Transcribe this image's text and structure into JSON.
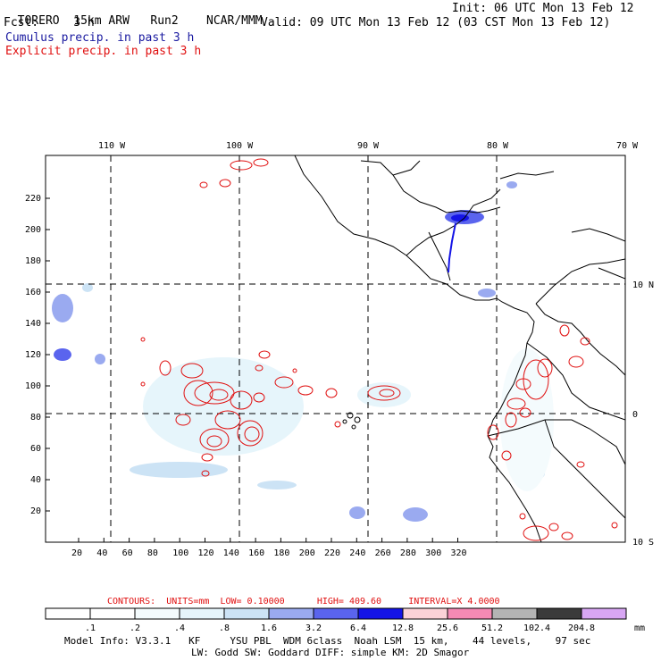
{
  "header": {
    "model": "TORERO",
    "resolution": "15km ARW",
    "run": "Run2",
    "org": "NCAR/MMM",
    "init": "Init: 06 UTC Mon 13 Feb 12",
    "fcst_label": "Fcst:",
    "fcst_value": "3 h",
    "valid": "Valid: 09 UTC Mon 13 Feb 12 (03 CST Mon 13 Feb 12)",
    "cumulus_title": "Cumulus precip. in past 3 h",
    "explicit_title": "Explicit precip. in past 3 h"
  },
  "colors": {
    "cumulus": "#1a1aa0",
    "explicit": "#e01010",
    "coast": "#000000"
  },
  "map": {
    "lon_labels": [
      "110 W",
      "100 W",
      "90 W",
      "80 W",
      "70 W"
    ],
    "lat_labels": [
      "10 N",
      "0",
      "10 S"
    ],
    "x_ticks": [
      "20",
      "40",
      "60",
      "80",
      "100",
      "120",
      "140",
      "160",
      "180",
      "200",
      "220",
      "240",
      "260",
      "280",
      "300",
      "320"
    ],
    "y_ticks": [
      "20",
      "40",
      "60",
      "80",
      "100",
      "120",
      "140",
      "160",
      "180",
      "200",
      "220"
    ]
  },
  "contour_info": {
    "label": "CONTOURS:",
    "units": "UNITS=mm",
    "low": "LOW= 0.10000",
    "high": "HIGH= 409.60",
    "interval": "INTERVAL=X 4.0000"
  },
  "colorbar": {
    "unit": "mm",
    "levels": [
      ".1",
      ".2",
      ".4",
      ".8",
      "1.6",
      "3.2",
      "6.4",
      "12.8",
      "25.6",
      "51.2",
      "102.4",
      "204.8"
    ],
    "colors": [
      "#ffffff",
      "#ffffff",
      "#f4fbfd",
      "#e6f5fb",
      "#cce3f5",
      "#9aaaf0",
      "#5a64ee",
      "#1414e6",
      "#fbd2d7",
      "#f58ab4",
      "#b4b4b4",
      "#3a3a3a",
      "#d8a6f4"
    ]
  },
  "footer": {
    "line1": "Model Info: V3.3.1   KF     YSU PBL  WDM 6class  Noah LSM  15 km,    44 levels,    97 sec",
    "line2": "LW: Godd SW: Goddard DIFF: simple KM: 2D Smagor"
  }
}
